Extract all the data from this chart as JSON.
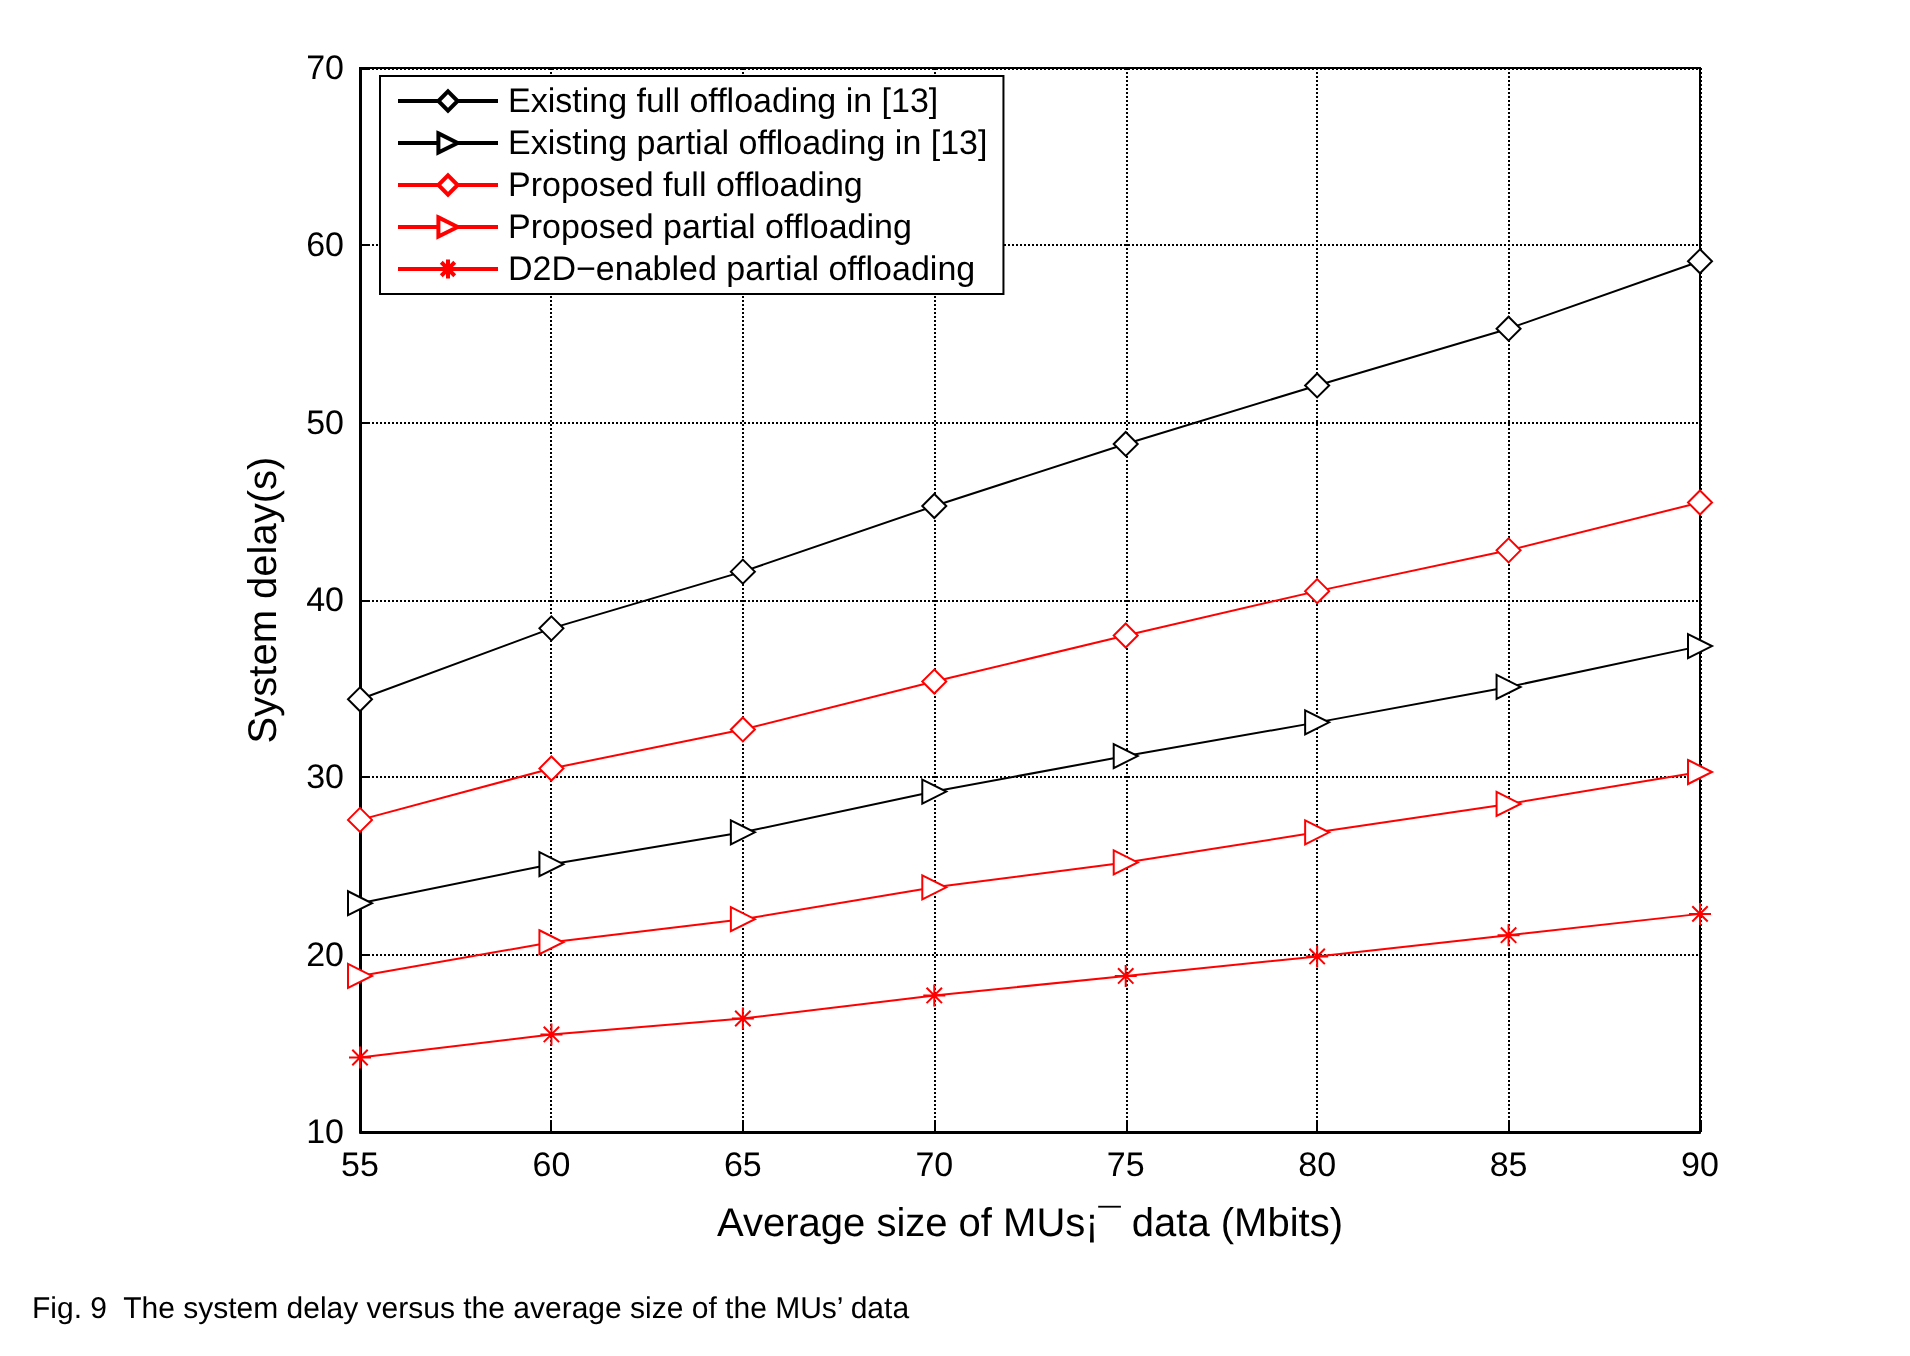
{
  "chart_data": {
    "type": "line",
    "xlabel": "Average size of MUs¡¯ data (Mbits)",
    "ylabel": "System delay(s)",
    "annotations": [
      "Fig. 9  The system delay versus the average size of the MUs’ data"
    ],
    "x": [
      55,
      60,
      65,
      70,
      75,
      80,
      85,
      90
    ],
    "series": [
      {
        "name": "Existing full offloading in [13]",
        "color": "#000000",
        "marker": "diamond",
        "values": [
          34.4,
          38.4,
          41.6,
          45.3,
          48.8,
          52.1,
          55.3,
          59.1
        ]
      },
      {
        "name": "Existing partial offloading in [13]",
        "color": "#000000",
        "marker": "triangle",
        "values": [
          22.9,
          25.1,
          26.9,
          29.2,
          31.2,
          33.1,
          35.1,
          37.4
        ]
      },
      {
        "name": "Proposed full offloading",
        "color": "#ff0000",
        "marker": "diamond",
        "values": [
          27.6,
          30.5,
          32.7,
          35.4,
          38.0,
          40.5,
          42.8,
          45.5
        ]
      },
      {
        "name": "Proposed partial offloading",
        "color": "#ff0000",
        "marker": "triangle",
        "values": [
          18.8,
          20.7,
          22.0,
          23.8,
          25.2,
          26.9,
          28.5,
          30.3
        ]
      },
      {
        "name": "D2D−enabled partial offloading",
        "color": "#ff0000",
        "marker": "cross",
        "values": [
          14.2,
          15.5,
          16.4,
          17.7,
          18.8,
          19.9,
          21.1,
          22.3
        ]
      }
    ],
    "xlim": [
      55,
      90
    ],
    "xticks": [
      55,
      60,
      65,
      70,
      75,
      80,
      85,
      90
    ],
    "ylim": [
      10,
      70
    ],
    "yticks": [
      10,
      20,
      30,
      40,
      50,
      60,
      70
    ],
    "grid": true,
    "legend": "top left",
    "line_style": "solid"
  }
}
